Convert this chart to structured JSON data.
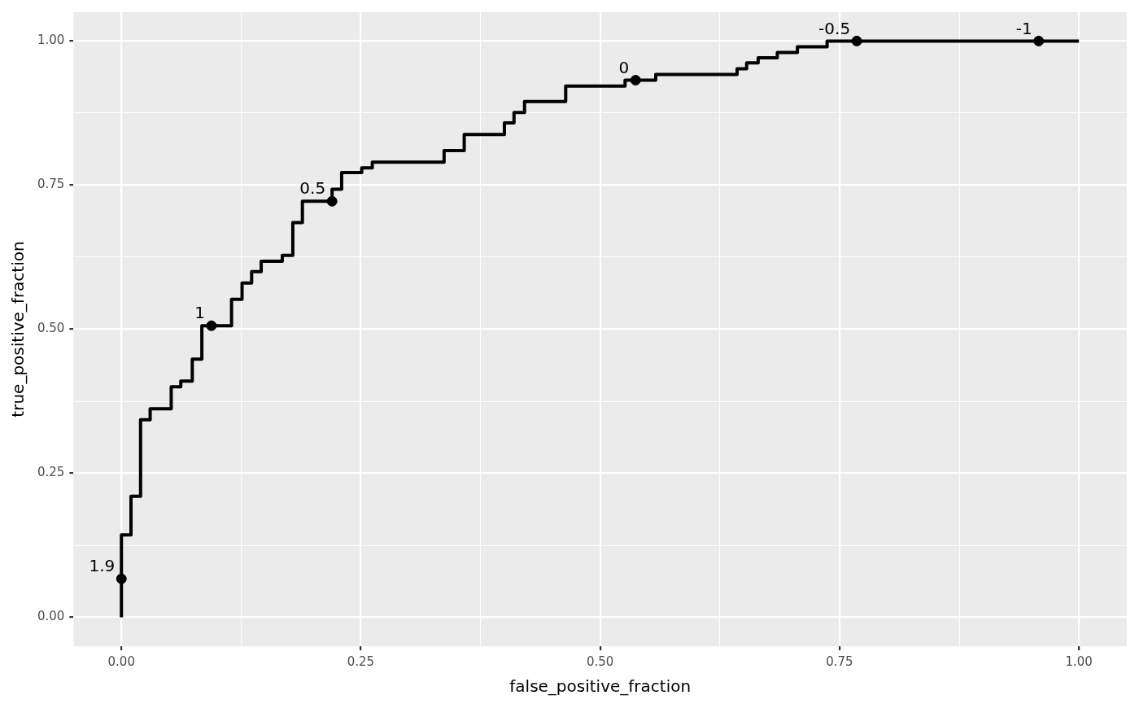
{
  "chart_data": {
    "type": "step",
    "xlabel": "false_positive_fraction",
    "ylabel": "true_positive_fraction",
    "xlim": [
      -0.05,
      1.05
    ],
    "ylim": [
      -0.05,
      1.05
    ],
    "xticks": [
      {
        "value": 0,
        "label": "0.00"
      },
      {
        "value": 0.125,
        "label": null
      },
      {
        "value": 0.25,
        "label": "0.25"
      },
      {
        "value": 0.375,
        "label": null
      },
      {
        "value": 0.5,
        "label": "0.50"
      },
      {
        "value": 0.625,
        "label": null
      },
      {
        "value": 0.75,
        "label": "0.75"
      },
      {
        "value": 0.875,
        "label": null
      },
      {
        "value": 1,
        "label": "1.00"
      }
    ],
    "yticks": [
      {
        "value": 0,
        "label": "0.00"
      },
      {
        "value": 0.125,
        "label": null
      },
      {
        "value": 0.25,
        "label": "0.25"
      },
      {
        "value": 0.375,
        "label": null
      },
      {
        "value": 0.5,
        "label": "0.50"
      },
      {
        "value": 0.625,
        "label": null
      },
      {
        "value": 0.75,
        "label": "0.75"
      },
      {
        "value": 0.875,
        "label": null
      },
      {
        "value": 1,
        "label": "1.00"
      }
    ],
    "grid": true,
    "legend": false,
    "series": [
      {
        "color": "#000000",
        "marker": "none",
        "x": [
          0,
          0,
          0.01,
          0.02,
          0.03,
          0.052,
          0.062,
          0.074,
          0.084,
          0.115,
          0.126,
          0.136,
          0.146,
          0.168,
          0.179,
          0.189,
          0.22,
          0.23,
          0.251,
          0.262,
          0.337,
          0.358,
          0.4,
          0.41,
          0.421,
          0.464,
          0.526,
          0.558,
          0.643,
          0.653,
          0.665,
          0.685,
          0.706,
          0.737,
          1
        ],
        "values": [
          0,
          0.143,
          0.21,
          0.343,
          0.362,
          0.4,
          0.41,
          0.448,
          0.506,
          0.552,
          0.58,
          0.6,
          0.618,
          0.628,
          0.685,
          0.722,
          0.743,
          0.772,
          0.78,
          0.79,
          0.81,
          0.838,
          0.858,
          0.876,
          0.895,
          0.922,
          0.932,
          0.942,
          0.952,
          0.962,
          0.971,
          0.98,
          0.99,
          1,
          1
        ]
      },
      {
        "type": "scatter",
        "color": "#000000",
        "marker": "circle",
        "x": [
          0,
          0.094,
          0.22,
          0.537,
          0.768,
          0.958
        ],
        "values": [
          0.067,
          0.506,
          0.722,
          0.932,
          1,
          1
        ]
      }
    ],
    "annotations": [
      {
        "text": "1.9",
        "x": 0,
        "y": 0.067
      },
      {
        "text": "1",
        "x": 0.094,
        "y": 0.506
      },
      {
        "text": "0.5",
        "x": 0.22,
        "y": 0.722
      },
      {
        "text": "0",
        "x": 0.537,
        "y": 0.932
      },
      {
        "text": "-0.5",
        "x": 0.768,
        "y": 1
      },
      {
        "text": "-1",
        "x": 0.958,
        "y": 1
      }
    ]
  }
}
